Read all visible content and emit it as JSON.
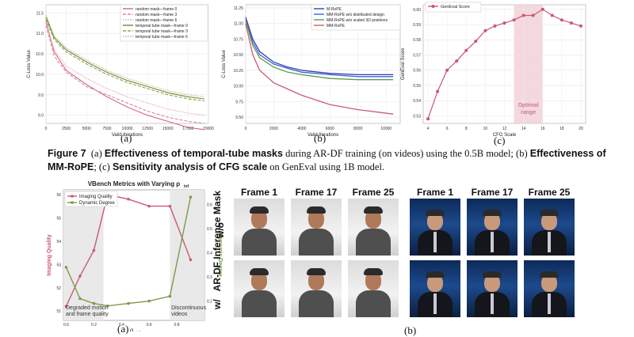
{
  "panels": {
    "a": {
      "label": "(a)"
    },
    "b": {
      "label": "(b)"
    },
    "c": {
      "label": "(c)"
    },
    "d": {
      "label": "(a)"
    },
    "e": {
      "label": "(b)"
    }
  },
  "caption": {
    "fig_num": "Figure 7",
    "p1": "(a)",
    "b1": "Effectiveness of temporal-tube masks",
    "p2": "during AR-DF training (on videos) using the 0.5B model; (b)",
    "b2": "Effectiveness of MM-RoPE",
    "p3": "; (c)",
    "b3": "Sensitivity analysis of CFG scale",
    "p4": "on GenEval using 1B model."
  },
  "frames": {
    "titles": [
      "Frame 1",
      "Frame 17",
      "Frame 25",
      "Frame 1",
      "Frame 17",
      "Frame 25"
    ],
    "row_wo": "w/o",
    "row_w": "w/",
    "row_sub": "AR-DF Inference Mask"
  },
  "chart_data": [
    {
      "type": "line",
      "xlabel": "Valid Iterations",
      "ylabel": "C-Loss Value",
      "xticks": [
        "0",
        "2500",
        "5000",
        "7500",
        "10000",
        "12500",
        "15000",
        "17500",
        "20000"
      ],
      "yticks": [
        "9.0",
        "9.5",
        "10.0",
        "10.5",
        "11.0",
        "11.5"
      ],
      "xlim": [
        0,
        20000
      ],
      "ylim": [
        8.8,
        11.7
      ],
      "legend": "top-right",
      "series": [
        {
          "name": "random mask—frame 0",
          "color": "#d06a7e",
          "x": [
            0,
            1000,
            2500,
            5000,
            7500,
            10000,
            12500,
            15000,
            17500,
            19500
          ],
          "y": [
            11.3,
            10.55,
            10.1,
            9.75,
            9.45,
            9.2,
            9.0,
            8.85,
            8.7,
            8.65
          ]
        },
        {
          "name": "random mask—frame 3",
          "color": "#d9869a",
          "x": [
            0,
            1000,
            2500,
            5000,
            7500,
            10000,
            12500,
            15000,
            17500,
            19500
          ],
          "y": [
            11.2,
            10.45,
            10.05,
            9.7,
            9.5,
            9.3,
            9.1,
            8.95,
            8.85,
            8.8
          ]
        },
        {
          "name": "random mask—frame 6",
          "color": "#e2a5b4",
          "x": [
            0,
            1000,
            2500,
            5000,
            7500,
            10000,
            12500,
            15000,
            17500,
            19500
          ],
          "y": [
            11.25,
            10.6,
            10.2,
            9.9,
            9.65,
            9.45,
            9.3,
            9.15,
            9.05,
            9.0
          ]
        },
        {
          "name": "temporal tube mask—frame 0",
          "color": "#6f8a3a",
          "x": [
            0,
            1000,
            2500,
            5000,
            7500,
            10000,
            12500,
            15000,
            17500,
            19500
          ],
          "y": [
            11.4,
            10.9,
            10.6,
            10.3,
            10.05,
            9.85,
            9.7,
            9.55,
            9.45,
            9.4
          ]
        },
        {
          "name": "temporal tube mask—frame 3",
          "color": "#8ea259",
          "x": [
            0,
            1000,
            2500,
            5000,
            7500,
            10000,
            12500,
            15000,
            17500,
            19500
          ],
          "y": [
            11.35,
            10.85,
            10.55,
            10.25,
            10.0,
            9.8,
            9.65,
            9.5,
            9.4,
            9.35
          ]
        },
        {
          "name": "temporal tube mask—frame 6",
          "color": "#b1c07f",
          "x": [
            0,
            1000,
            2500,
            5000,
            7500,
            10000,
            12500,
            15000,
            17500,
            19500
          ],
          "y": [
            11.45,
            10.95,
            10.65,
            10.35,
            10.1,
            9.9,
            9.75,
            9.6,
            9.5,
            9.45
          ]
        }
      ]
    },
    {
      "type": "line",
      "xlabel": "Valid Iterations",
      "ylabel": "C-Loss Value",
      "xticks": [
        "0",
        "2000",
        "4000",
        "6000",
        "8000",
        "10000"
      ],
      "yticks": [
        "9.50",
        "9.75",
        "10.00",
        "10.25",
        "10.50",
        "10.75",
        "11.00",
        "11.25"
      ],
      "xlim": [
        0,
        11000
      ],
      "ylim": [
        9.4,
        11.3
      ],
      "legend": "top-right",
      "series": [
        {
          "name": "M-RoPE",
          "color": "#2f3fb5",
          "x": [
            0,
            500,
            1000,
            2000,
            3000,
            4000,
            6000,
            8000,
            10500
          ],
          "y": [
            11.1,
            10.75,
            10.55,
            10.38,
            10.3,
            10.25,
            10.2,
            10.18,
            10.18
          ]
        },
        {
          "name": "MM-RoPE w/o distributed design",
          "color": "#3f61d6",
          "x": [
            0,
            500,
            1000,
            2000,
            3000,
            4000,
            6000,
            8000,
            10500
          ],
          "y": [
            11.05,
            10.7,
            10.5,
            10.35,
            10.28,
            10.22,
            10.18,
            10.15,
            10.15
          ]
        },
        {
          "name": "MM-RoPE w/o scaled 3D positions",
          "color": "#5e9a4c",
          "x": [
            0,
            500,
            1000,
            2000,
            3000,
            4000,
            6000,
            8000,
            10500
          ],
          "y": [
            11.05,
            10.65,
            10.45,
            10.3,
            10.22,
            10.18,
            10.12,
            10.1,
            10.1
          ]
        },
        {
          "name": "MM-RoPE",
          "color": "#c95a73",
          "x": [
            0,
            500,
            1000,
            2000,
            3000,
            4000,
            6000,
            8000,
            10500
          ],
          "y": [
            11.0,
            10.5,
            10.25,
            10.05,
            9.95,
            9.85,
            9.7,
            9.62,
            9.55
          ]
        }
      ]
    },
    {
      "type": "line",
      "xlabel": "CFG Scale",
      "ylabel": "GenEval Score",
      "xticks": [
        "4",
        "6",
        "8",
        "10",
        "12",
        "14",
        "16",
        "18",
        "20"
      ],
      "yticks": [
        "0.53",
        "0.54",
        "0.55",
        "0.56",
        "0.57",
        "0.58",
        "0.59",
        "0.60"
      ],
      "xlim": [
        3.5,
        20.5
      ],
      "ylim": [
        0.525,
        0.603
      ],
      "legend": "top-left",
      "annotation": "Optimal range",
      "band": [
        13,
        16
      ],
      "series": [
        {
          "name": "GenEval Score",
          "color": "#c85870",
          "x": [
            4,
            5,
            6,
            7,
            8,
            9,
            10,
            11,
            12,
            13,
            14,
            15,
            16,
            17,
            18,
            19,
            20
          ],
          "y": [
            0.528,
            0.546,
            0.56,
            0.566,
            0.573,
            0.579,
            0.586,
            0.589,
            0.591,
            0.593,
            0.596,
            0.596,
            0.6,
            0.596,
            0.593,
            0.591,
            0.589
          ]
        }
      ]
    },
    {
      "type": "line",
      "title": "VBench Metrics with Varying ρ",
      "title_sub": "inf",
      "xlabel": "ρ",
      "xlabel_sub": "inf",
      "ylabel": "Imaging Quality",
      "ylabel2": "Dynamic Degree",
      "xticks": [
        "0.0",
        "0.2",
        "0.4",
        "0.6",
        "0.8"
      ],
      "yticks": [
        "51",
        "52",
        "53",
        "54",
        "55",
        "56"
      ],
      "yticks2": [
        "0.2",
        "0.3",
        "0.4",
        "0.5",
        "0.6"
      ],
      "xlim": [
        -0.02,
        1.0
      ],
      "ylim": [
        50.6,
        56.2
      ],
      "ylim2": [
        0.12,
        0.66
      ],
      "legend": "top-left",
      "annotations": [
        "Degraded motion",
        "and frame quality",
        "Discontinuous",
        "videos"
      ],
      "series": [
        {
          "name": "Imaging Quality",
          "color": "#c95a73",
          "axis": "left",
          "x": [
            0.0,
            0.1,
            0.2,
            0.3,
            0.45,
            0.6,
            0.75,
            0.9
          ],
          "y": [
            51.2,
            52.5,
            53.6,
            56.0,
            55.8,
            55.5,
            55.5,
            53.2
          ]
        },
        {
          "name": "Dynamic Degree",
          "color": "#7d9a4a",
          "axis": "right",
          "x": [
            0.0,
            0.1,
            0.2,
            0.3,
            0.45,
            0.6,
            0.75,
            0.9
          ],
          "y": [
            0.34,
            0.21,
            0.19,
            0.18,
            0.19,
            0.2,
            0.22,
            0.63
          ]
        }
      ]
    }
  ]
}
